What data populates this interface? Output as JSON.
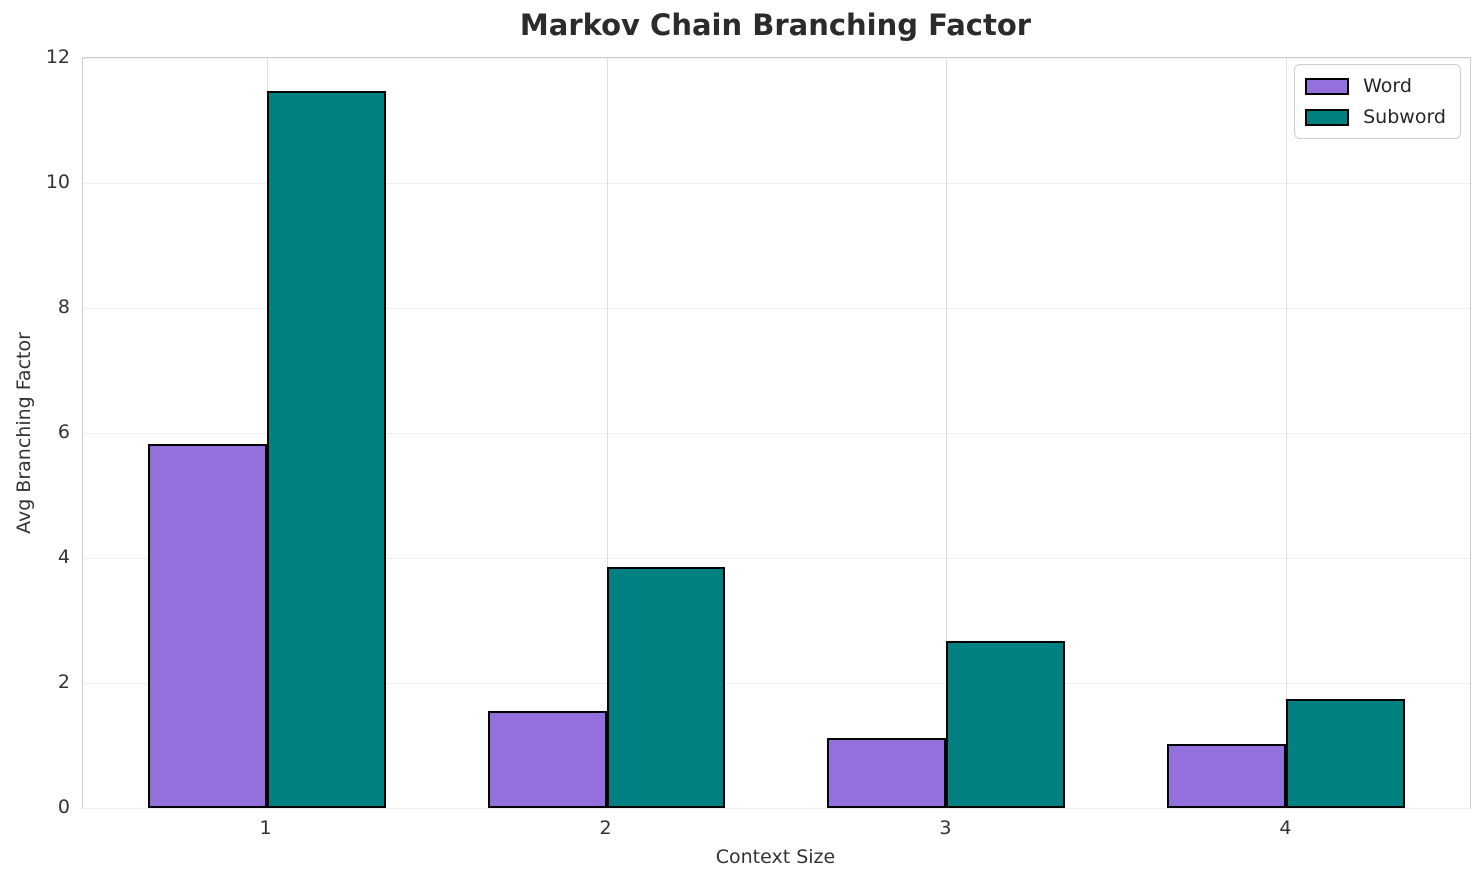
{
  "chart_data": {
    "type": "bar",
    "title": "Markov Chain Branching Factor",
    "xlabel": "Context Size",
    "ylabel": "Avg Branching Factor",
    "categories": [
      "1",
      "2",
      "3",
      "4"
    ],
    "series": [
      {
        "name": "Word",
        "color": "#9370DB",
        "values": [
          5.82,
          1.56,
          1.12,
          1.03
        ]
      },
      {
        "name": "Subword",
        "color": "#008080",
        "values": [
          11.48,
          3.86,
          2.67,
          1.74
        ]
      }
    ],
    "ylim": [
      0,
      12
    ],
    "yticks": [
      0,
      2,
      4,
      6,
      8,
      10,
      12
    ],
    "bar_width": 0.35,
    "grid": true,
    "legend_position": "upper right",
    "bar_edge_color": "#000000",
    "colors": {
      "word": "#9370DB",
      "subword": "#008080",
      "title_text": "#2b2b2b",
      "tick_text": "#333333",
      "grid_h": "#efefef",
      "grid_v": "#dedede",
      "spine": "#cfcfcf"
    }
  }
}
